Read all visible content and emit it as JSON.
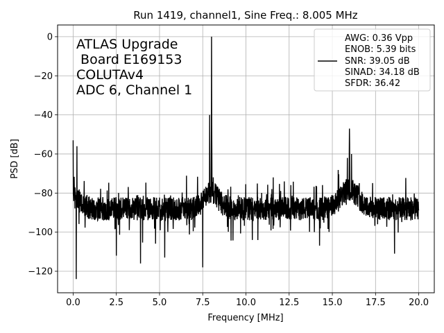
{
  "chart_data": {
    "type": "line",
    "title": "Run 1419, channel1, Sine Freq.: 8.005 MHz",
    "xlabel": "Frequency [MHz]",
    "ylabel": "PSD [dB]",
    "xlim": [
      -0.9,
      20.9
    ],
    "ylim": [
      -131,
      6
    ],
    "xticks": [
      0.0,
      2.5,
      5.0,
      7.5,
      10.0,
      12.5,
      15.0,
      17.5,
      20.0
    ],
    "xtick_labels": [
      "0.0",
      "2.5",
      "5.0",
      "7.5",
      "10.0",
      "12.5",
      "15.0",
      "17.5",
      "20.0"
    ],
    "yticks": [
      0,
      -20,
      -40,
      -60,
      -80,
      -100,
      -120
    ],
    "ytick_labels": [
      "0",
      "−20",
      "−40",
      "−60",
      "−80",
      "−100",
      "−120"
    ],
    "grid": true,
    "annotation_lines": [
      "ATLAS Upgrade",
      " Board E169153",
      "COLUTAv4",
      "ADC 6, Channel 1"
    ],
    "legend": {
      "placement": "upper-right",
      "lines": [
        "AWG: 0.36 Vpp",
        "ENOB: 5.39 bits",
        "SNR: 39.05 dB",
        "SINAD: 34.18 dB",
        "SFDR: 36.42"
      ]
    },
    "series": [
      {
        "color": "#000000",
        "features": {
          "x_range": [
            0.0,
            20.0
          ],
          "noise_floor_center": -88,
          "noise_spread": 6,
          "peaks": [
            {
              "x": 8.005,
              "y": 0
            },
            {
              "x": 15.99,
              "y": -47
            },
            {
              "x": 7.9,
              "y": -40
            },
            {
              "x": 0.0,
              "y": -53
            },
            {
              "x": 0.22,
              "y": -56
            }
          ],
          "dips": [
            {
              "x": 0.18,
              "y": -124
            },
            {
              "x": 7.5,
              "y": -118
            },
            {
              "x": 3.9,
              "y": -116
            },
            {
              "x": 2.5,
              "y": -112
            },
            {
              "x": 5.3,
              "y": -113
            },
            {
              "x": 18.6,
              "y": -111
            }
          ]
        }
      }
    ]
  }
}
